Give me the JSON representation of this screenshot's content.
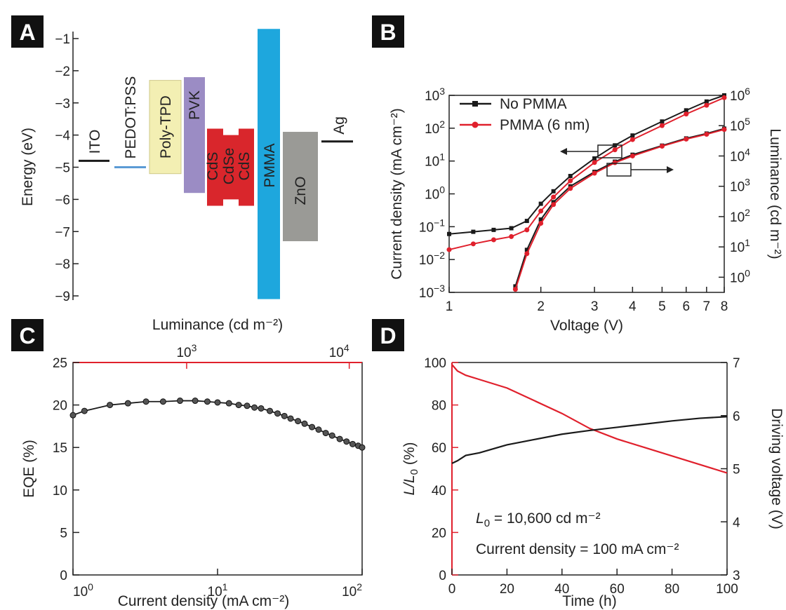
{
  "panels": {
    "A": {
      "letter": "A"
    },
    "B": {
      "letter": "B"
    },
    "C": {
      "letter": "C"
    },
    "D": {
      "letter": "D"
    }
  },
  "colors": {
    "black": "#1a1a1a",
    "red": "#e0202c",
    "ito": "#1a1a1a",
    "pedot": "#5b9bd5",
    "polytpd": "#f3efb3",
    "pvk": "#9b8cc4",
    "cds": "#d9262c",
    "pmma": "#1ea7dd",
    "zno": "#9a9a96",
    "ag": "#1a1a1a"
  },
  "chart_data": [
    {
      "panel": "A",
      "type": "diagram",
      "ylabel": "Energy (eV)",
      "ylim": [
        -9,
        -1
      ],
      "yticks": [
        "-1",
        "-2",
        "-3",
        "-4",
        "-5",
        "-6",
        "-7",
        "-8",
        "-9"
      ],
      "levels": [
        {
          "label": "ITO",
          "kind": "line",
          "y": -4.8
        },
        {
          "label": "PEDOT:PSS",
          "kind": "line",
          "y": -5.0
        },
        {
          "label": "Poly-TPD",
          "kind": "bar",
          "top": -2.3,
          "bottom": -5.2
        },
        {
          "label": "PVK",
          "kind": "bar",
          "top": -2.2,
          "bottom": -5.8
        },
        {
          "label": "CdS",
          "kind": "qd",
          "top": -3.8,
          "bottom": -6.2
        },
        {
          "label": "CdSe",
          "kind": "qd",
          "top": -4.0,
          "bottom": -6.0
        },
        {
          "label": "CdS",
          "kind": "qd",
          "top": -3.8,
          "bottom": -6.2
        },
        {
          "label": "PMMA",
          "kind": "bar",
          "top": -0.7,
          "bottom": -9.1
        },
        {
          "label": "ZnO",
          "kind": "bar",
          "top": -3.9,
          "bottom": -7.3
        },
        {
          "label": "Ag",
          "kind": "line",
          "y": -4.2
        }
      ]
    },
    {
      "panel": "B",
      "type": "line",
      "xlabel": "Voltage (V)",
      "ylabel_left": "Current density (mA cm⁻²)",
      "ylabel_right": "Luminance (cd m⁻²)",
      "xscale": "log",
      "xlim": [
        1,
        8
      ],
      "xticks": [
        {
          "v": 1,
          "label": "1"
        },
        {
          "v": 2,
          "label": "2"
        },
        {
          "v": 3,
          "label": "3"
        },
        {
          "v": 4,
          "label": "4"
        },
        {
          "v": 5,
          "label": "5"
        },
        {
          "v": 6,
          "label": "6"
        },
        {
          "v": 7,
          "label": "7"
        },
        {
          "v": 8,
          "label": "8"
        }
      ],
      "ylim_left_exp": [
        -3,
        3
      ],
      "ylim_right_exp": [
        -0.5,
        6
      ],
      "yticks_left_exp": [
        -3,
        -2,
        -1,
        0,
        1,
        2,
        3
      ],
      "yticks_right_exp": [
        0,
        1,
        2,
        3,
        4,
        5,
        6
      ],
      "legend": [
        "No PMMA",
        "PMMA (6 nm)"
      ],
      "legend_position": "top-left",
      "series": [
        {
          "name": "No PMMA",
          "quantity": "current",
          "color": "#1a1a1a",
          "marker": "square",
          "x": [
            1.0,
            1.2,
            1.4,
            1.6,
            1.8,
            2.0,
            2.2,
            2.5,
            3.0,
            3.5,
            4.0,
            5.0,
            6.0,
            7.0,
            8.0
          ],
          "y": [
            0.06,
            0.07,
            0.08,
            0.09,
            0.15,
            0.5,
            1.2,
            3.5,
            12,
            30,
            60,
            160,
            350,
            650,
            1100
          ]
        },
        {
          "name": "PMMA (6 nm)",
          "quantity": "current",
          "color": "#e0202c",
          "marker": "circle",
          "x": [
            1.0,
            1.2,
            1.4,
            1.6,
            1.8,
            2.0,
            2.2,
            2.5,
            3.0,
            3.5,
            4.0,
            5.0,
            6.0,
            7.0,
            8.0
          ],
          "y": [
            0.02,
            0.03,
            0.04,
            0.05,
            0.08,
            0.3,
            0.8,
            2.5,
            9,
            22,
            45,
            120,
            270,
            500,
            850
          ]
        },
        {
          "name": "No PMMA",
          "quantity": "luminance",
          "color": "#1a1a1a",
          "marker": "square",
          "x": [
            1.65,
            1.8,
            2.0,
            2.2,
            2.5,
            3.0,
            3.5,
            4.0,
            5.0,
            6.0,
            7.0,
            8.0
          ],
          "y": [
            0.5,
            8,
            80,
            300,
            1000,
            3000,
            6500,
            11000,
            22000,
            38000,
            55000,
            80000
          ]
        },
        {
          "name": "PMMA (6 nm)",
          "quantity": "luminance",
          "color": "#e0202c",
          "marker": "circle",
          "x": [
            1.65,
            1.8,
            2.0,
            2.2,
            2.5,
            3.0,
            3.5,
            4.0,
            5.0,
            6.0,
            7.0,
            8.0
          ],
          "y": [
            0.4,
            6,
            60,
            250,
            850,
            2700,
            6000,
            10000,
            21000,
            36000,
            52000,
            75000
          ]
        }
      ]
    },
    {
      "panel": "C",
      "type": "line",
      "xlabel": "Current density (mA cm⁻²)",
      "ylabel": "EQE (%)",
      "top_xlabel": "Luminance (cd m⁻²)",
      "xscale": "log",
      "xlim": [
        1,
        100
      ],
      "ylim": [
        0,
        25
      ],
      "xticks_exp": [
        0,
        1,
        2
      ],
      "yticks": [
        0,
        5,
        10,
        15,
        20,
        25
      ],
      "top_xlim": [
        200,
        12000
      ],
      "top_xticks_exp": [
        3,
        4
      ],
      "series": [
        {
          "color": "#1a1a1a",
          "marker": "circle",
          "x": [
            1.0,
            1.2,
            1.8,
            2.4,
            3.2,
            4.2,
            5.5,
            7.0,
            8.5,
            10,
            12,
            14,
            16,
            18,
            20,
            23,
            26,
            29,
            32,
            36,
            40,
            45,
            50,
            56,
            62,
            70,
            78,
            86,
            94,
            100
          ],
          "y": [
            18.8,
            19.3,
            20.0,
            20.2,
            20.4,
            20.4,
            20.5,
            20.5,
            20.4,
            20.3,
            20.2,
            20.0,
            19.9,
            19.7,
            19.6,
            19.3,
            19.0,
            18.7,
            18.4,
            18.1,
            17.8,
            17.4,
            17.1,
            16.7,
            16.4,
            16.0,
            15.7,
            15.4,
            15.2,
            15.0
          ]
        }
      ]
    },
    {
      "panel": "D",
      "type": "line",
      "xlabel": "Time (h)",
      "ylabel_left_main": "L/L",
      "ylabel_left_sub": "0",
      "ylabel_left_unit": " (%)",
      "ylabel_right": "Driving voltage (V)",
      "xlim": [
        0,
        100
      ],
      "xticks": [
        0,
        20,
        40,
        60,
        80,
        100
      ],
      "ylim_left": [
        0,
        100
      ],
      "yticks_left": [
        0,
        20,
        40,
        60,
        80,
        100
      ],
      "ylim_right": [
        3,
        7
      ],
      "yticks_right": [
        3,
        4,
        5,
        6,
        7
      ],
      "annotations": [
        {
          "prefix": "L",
          "sub": "0",
          "text": " = 10,600 cd m⁻²"
        },
        {
          "text": "Current density = 100 mA cm⁻²"
        }
      ],
      "series": [
        {
          "quantity": "L/L0",
          "axis": "left",
          "color": "#e0202c",
          "x": [
            0,
            2,
            5,
            10,
            20,
            30,
            40,
            50,
            60,
            70,
            80,
            90,
            100
          ],
          "y": [
            99,
            96,
            94,
            92,
            88,
            82,
            76,
            69,
            64,
            60,
            56,
            52,
            48
          ]
        },
        {
          "quantity": "Driving voltage",
          "axis": "right",
          "color": "#1a1a1a",
          "x": [
            0,
            2,
            5,
            10,
            20,
            30,
            40,
            50,
            60,
            70,
            80,
            90,
            100
          ],
          "y": [
            5.1,
            5.15,
            5.25,
            5.3,
            5.45,
            5.55,
            5.65,
            5.72,
            5.78,
            5.84,
            5.9,
            5.95,
            5.98
          ]
        }
      ]
    }
  ]
}
